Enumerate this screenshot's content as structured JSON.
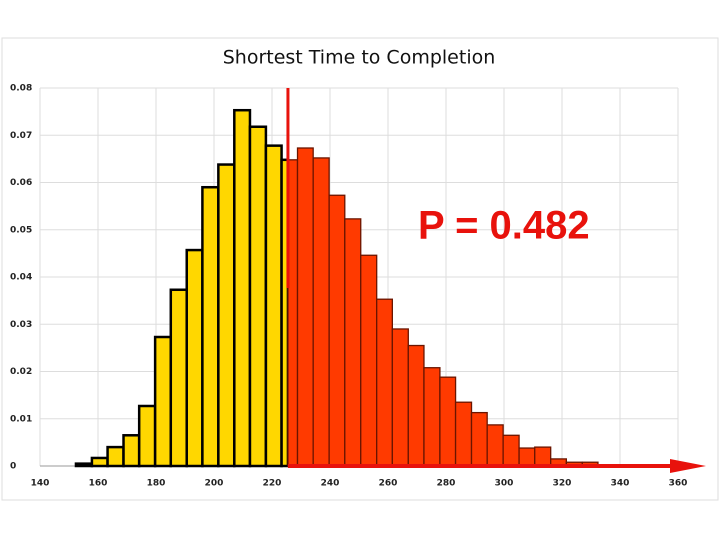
{
  "chart_data": {
    "type": "histogram",
    "title": "Shortest Time to Completion",
    "bins": [
      152.4,
      157.9,
      163.3,
      168.8,
      174.2,
      179.7,
      185.1,
      190.6,
      196.0,
      201.5,
      207.0,
      212.4,
      217.9,
      223.3,
      228.8,
      234.2,
      239.7,
      245.1,
      250.6,
      256.1,
      261.5,
      267.0,
      272.4,
      277.9,
      283.3,
      288.8,
      294.2,
      299.7,
      305.2,
      310.6,
      316.1,
      321.5,
      327.0,
      332.4
    ],
    "values": [
      0.0005,
      0.0017,
      0.004,
      0.0065,
      0.0127,
      0.0273,
      0.0373,
      0.0457,
      0.059,
      0.0638,
      0.0753,
      0.0718,
      0.0678,
      0.0648,
      0.0673,
      0.0652,
      0.0573,
      0.0523,
      0.0446,
      0.0353,
      0.029,
      0.0255,
      0.0208,
      0.0188,
      0.0135,
      0.0113,
      0.0087,
      0.0065,
      0.0038,
      0.004,
      0.0015,
      0.0008,
      0.0008
    ],
    "color": "#ffd700",
    "highlight_color": "#ff3a00",
    "marker_x": 225.5,
    "annotation": "P = 0.482",
    "xlim": [
      140,
      360
    ],
    "xticks": [
      140,
      160,
      180,
      200,
      220,
      240,
      260,
      280,
      300,
      320,
      340,
      360
    ],
    "ylim": [
      0,
      0.08
    ],
    "yticks": [
      0,
      0.01,
      0.02,
      0.03,
      0.04,
      0.05,
      0.06,
      0.07,
      0.08
    ],
    "grid": true
  }
}
